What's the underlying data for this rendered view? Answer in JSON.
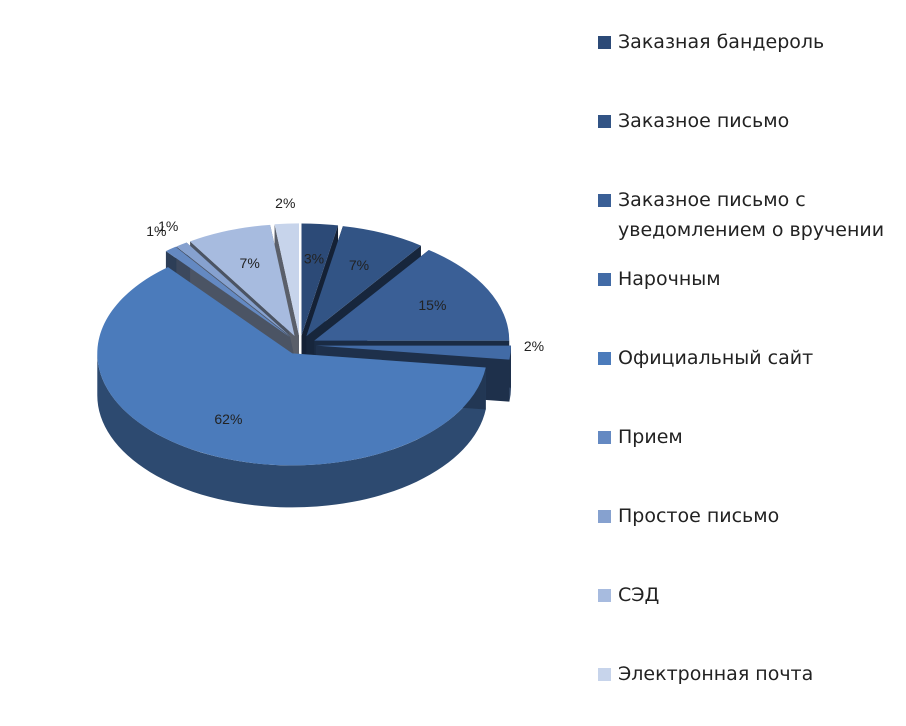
{
  "chart_data": {
    "type": "pie",
    "categories": [
      "Заказная бандероль",
      "Заказное письмо",
      "Заказное письмо с уведомлением о вручении",
      "Нарочным",
      "Официальный сайт",
      "Прием",
      "Простое письмо",
      "СЭД",
      "Электронная почта"
    ],
    "values": [
      3,
      7,
      15,
      2,
      62,
      1,
      1,
      7,
      2
    ],
    "value_labels": [
      "3%",
      "7%",
      "15%",
      "2%",
      "62%",
      "1%",
      "1%",
      "7%",
      "2%"
    ],
    "colors": [
      "#2c4a77",
      "#325485",
      "#3a5f96",
      "#426ba6",
      "#4b7bbb",
      "#6489c2",
      "#86a1cf",
      "#a7bbdf",
      "#c7d4eb"
    ]
  }
}
